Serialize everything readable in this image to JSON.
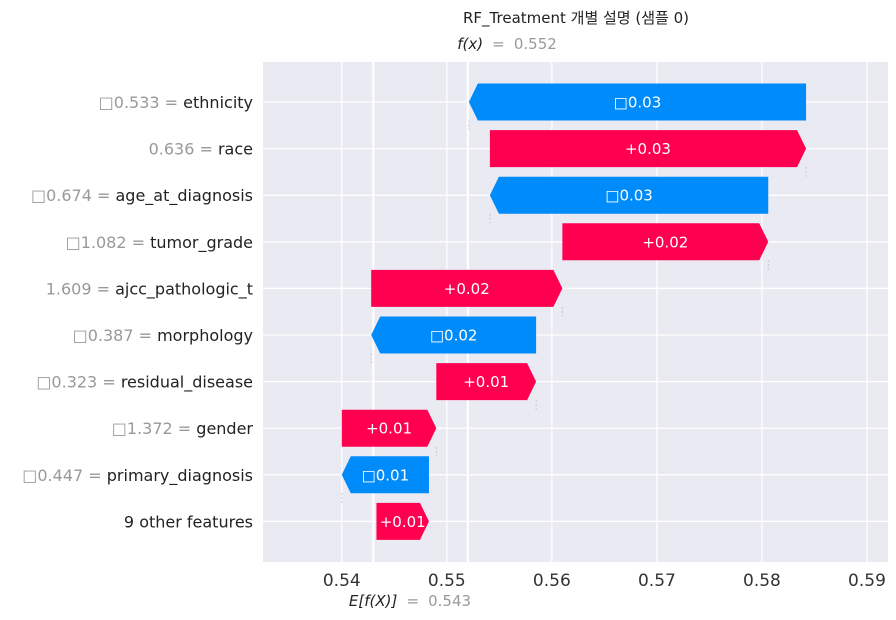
{
  "chart_data": {
    "type": "bar",
    "title": "RF_Treatment 개별 설명 (샘플 0)",
    "fx": {
      "label": "f(x)",
      "sep": "=",
      "value": "0.552",
      "x": 0.552
    },
    "efx": {
      "label": "E[f(X)]",
      "sep": "=",
      "value": "0.543",
      "x": 0.543
    },
    "xlim": [
      0.5325,
      0.592
    ],
    "x_ticks": [
      0.54,
      0.55,
      0.56,
      0.57,
      0.58,
      0.59
    ],
    "x_tick_labels": [
      "0.54",
      "0.55",
      "0.56",
      "0.57",
      "0.58",
      "0.59"
    ],
    "grid": true,
    "colors": {
      "positive": "#ff0051",
      "negative": "#008bfb",
      "background": "#eaeaf2"
    },
    "features": [
      {
        "value": "□0.533",
        "eq": "=",
        "name": "ethnicity",
        "start": 0.5842,
        "end": 0.5521,
        "label": "□0.03"
      },
      {
        "value": "0.636",
        "eq": "=",
        "name": "race",
        "start": 0.5541,
        "end": 0.5842,
        "label": "+0.03"
      },
      {
        "value": "□0.674",
        "eq": "=",
        "name": "age_at_diagnosis",
        "start": 0.5806,
        "end": 0.5541,
        "label": "□0.03"
      },
      {
        "value": "□1.082",
        "eq": "=",
        "name": "tumor_grade",
        "start": 0.561,
        "end": 0.5806,
        "label": "+0.02"
      },
      {
        "value": "1.609",
        "eq": "=",
        "name": "ajcc_pathologic_t",
        "start": 0.5428,
        "end": 0.561,
        "label": "+0.02"
      },
      {
        "value": "□0.387",
        "eq": "=",
        "name": "morphology",
        "start": 0.5585,
        "end": 0.5428,
        "label": "□0.02"
      },
      {
        "value": "□0.323",
        "eq": "=",
        "name": "residual_disease",
        "start": 0.549,
        "end": 0.5585,
        "label": "+0.01"
      },
      {
        "value": "□1.372",
        "eq": "=",
        "name": "gender",
        "start": 0.54,
        "end": 0.549,
        "label": "+0.01"
      },
      {
        "value": "□0.447",
        "eq": "=",
        "name": "primary_diagnosis",
        "start": 0.5483,
        "end": 0.54,
        "label": "□0.01"
      },
      {
        "value": "",
        "eq": "",
        "name": "9 other features",
        "start": 0.5433,
        "end": 0.5483,
        "label": "+0.01"
      }
    ]
  }
}
